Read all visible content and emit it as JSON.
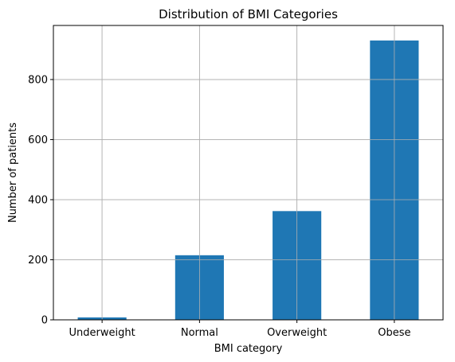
{
  "chart_data": {
    "type": "bar",
    "title": "Distribution of BMI Categories",
    "xlabel": "BMI category",
    "ylabel": "Number of patients",
    "categories": [
      "Underweight",
      "Normal",
      "Overweight",
      "Obese"
    ],
    "values": [
      8,
      215,
      362,
      930
    ],
    "ylim": [
      0,
      980
    ],
    "yticks": [
      0,
      200,
      400,
      600,
      800
    ],
    "grid": true,
    "bar_color": "#1f77b4",
    "grid_color": "#b0b0b0"
  }
}
